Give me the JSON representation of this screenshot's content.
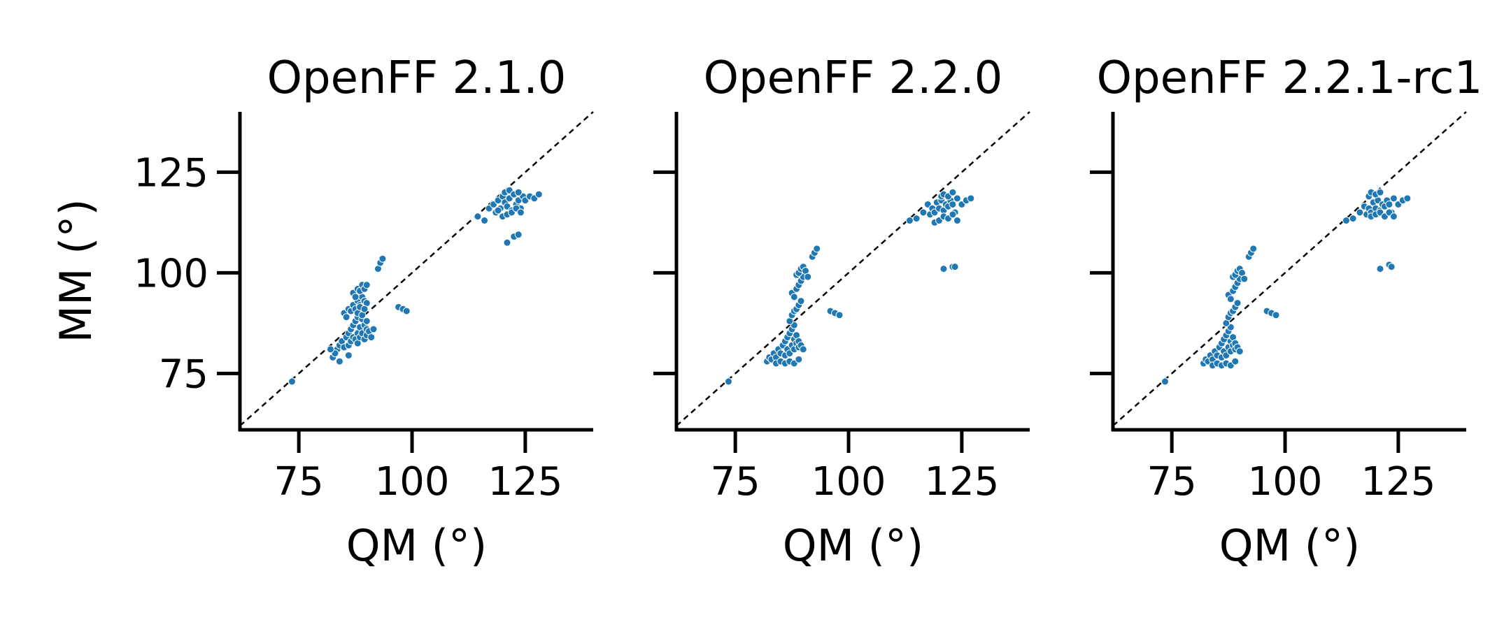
{
  "chart_data": [
    {
      "type": "scatter",
      "title": "OpenFF 2.1.0",
      "xlabel": "QM (°)",
      "ylabel": "MM (°)",
      "xlim": [
        62,
        140
      ],
      "ylim": [
        61,
        140
      ],
      "xticks": [
        75,
        100,
        125
      ],
      "yticks": [
        75,
        100,
        125
      ],
      "grid": false,
      "reference_line": "y = x (dashed)",
      "point_color": "#1f77b4",
      "series": [
        {
          "x": [
            73.5,
            82.5,
            83.0,
            83.5,
            84.0,
            84.5,
            85.0,
            85.5,
            86.0,
            86.0,
            86.5,
            86.5,
            87.0,
            87.0,
            87.5,
            87.5,
            88.0,
            88.0,
            88.0,
            88.5,
            88.5,
            89.0,
            89.0,
            89.5,
            89.5,
            90.0,
            90.0,
            90.5,
            91.0,
            91.5,
            85.0,
            85.5,
            86.0,
            86.5,
            87.0,
            87.5,
            88.0,
            88.5,
            89.0,
            89.5,
            90.0,
            87.0,
            87.5,
            88.0,
            88.5,
            89.0,
            89.5,
            90.0,
            88.0,
            88.5,
            89.0,
            89.5,
            90.0,
            86.0,
            84.0,
            83.0,
            82.0,
            92.5,
            93.0,
            93.5,
            97.0,
            98.0,
            98.8,
            114.5,
            116.0,
            117.0,
            118.0,
            118.5,
            119.0,
            119.5,
            120.0,
            120.5,
            121.0,
            121.5,
            122.0,
            122.5,
            123.0,
            123.5,
            124.0,
            124.5,
            125.0,
            126.0,
            127.0,
            128.0,
            119.0,
            120.0,
            121.0,
            122.0,
            123.0,
            124.0,
            120.5,
            121.5,
            122.5,
            123.5,
            121.0,
            122.5,
            123.5
          ],
          "y": [
            73.0,
            79.0,
            80.0,
            81.0,
            82.0,
            83.0,
            81.5,
            84.0,
            82.0,
            85.0,
            83.0,
            86.0,
            84.0,
            87.0,
            83.5,
            88.0,
            82.5,
            85.0,
            89.0,
            84.0,
            86.5,
            85.0,
            88.5,
            83.5,
            87.0,
            84.5,
            86.0,
            85.5,
            84.0,
            86.0,
            90.0,
            89.0,
            91.0,
            90.5,
            92.0,
            91.0,
            93.0,
            92.0,
            94.0,
            93.0,
            92.5,
            95.0,
            94.0,
            96.0,
            95.5,
            97.0,
            96.0,
            97.0,
            90.0,
            91.5,
            89.5,
            91.0,
            88.0,
            79.5,
            78.0,
            80.0,
            81.0,
            101.0,
            102.5,
            103.5,
            91.5,
            91.0,
            90.5,
            114.0,
            113.0,
            116.0,
            117.0,
            115.0,
            118.0,
            116.0,
            119.0,
            117.5,
            116.5,
            118.5,
            115.5,
            119.5,
            117.0,
            118.0,
            116.0,
            119.0,
            118.0,
            119.0,
            118.5,
            119.5,
            115.5,
            114.0,
            114.5,
            115.0,
            116.0,
            115.0,
            120.0,
            120.5,
            119.5,
            120.0,
            107.5,
            109.0,
            109.5
          ]
        }
      ]
    },
    {
      "type": "scatter",
      "title": "OpenFF 2.2.0",
      "xlabel": "QM (°)",
      "ylabel": "",
      "xlim": [
        62,
        140
      ],
      "ylim": [
        61,
        140
      ],
      "xticks": [
        75,
        100,
        125
      ],
      "yticks": [
        75,
        100,
        125
      ],
      "grid": false,
      "reference_line": "y = x (dashed)",
      "point_color": "#1f77b4",
      "series": [
        {
          "x": [
            73.5,
            82.0,
            82.5,
            83.0,
            83.5,
            84.0,
            84.5,
            85.0,
            85.5,
            86.0,
            86.0,
            86.5,
            86.5,
            87.0,
            87.0,
            87.5,
            87.5,
            88.0,
            88.0,
            88.0,
            88.5,
            88.5,
            89.0,
            89.0,
            89.5,
            90.0,
            84.0,
            85.0,
            86.0,
            87.0,
            88.0,
            89.0,
            87.0,
            87.5,
            88.0,
            88.5,
            89.0,
            89.5,
            87.5,
            88.0,
            88.5,
            89.0,
            89.5,
            90.0,
            88.5,
            89.0,
            89.5,
            90.0,
            90.5,
            91.0,
            92.0,
            92.5,
            93.0,
            96.0,
            97.0,
            98.0,
            113.5,
            115.0,
            116.5,
            117.5,
            118.0,
            118.5,
            119.0,
            119.5,
            120.0,
            120.5,
            121.0,
            121.5,
            122.0,
            122.5,
            123.0,
            123.5,
            124.0,
            125.0,
            126.0,
            127.0,
            119.0,
            120.0,
            121.0,
            122.0,
            123.0,
            124.0,
            120.5,
            121.0,
            122.0,
            123.0,
            121.0,
            123.0,
            123.5
          ],
          "y": [
            73.0,
            78.0,
            79.0,
            78.5,
            80.0,
            79.0,
            81.0,
            80.0,
            82.0,
            79.5,
            83.0,
            81.0,
            84.0,
            80.0,
            85.0,
            82.0,
            86.0,
            81.0,
            83.5,
            87.0,
            82.5,
            84.5,
            81.5,
            83.0,
            82.0,
            81.0,
            77.5,
            78.0,
            77.5,
            78.0,
            77.5,
            78.5,
            88.0,
            89.5,
            90.5,
            91.0,
            92.0,
            93.0,
            95.0,
            94.0,
            96.0,
            97.0,
            98.0,
            99.0,
            99.5,
            100.0,
            101.0,
            101.5,
            100.5,
            99.0,
            104.0,
            105.0,
            106.0,
            90.5,
            90.0,
            89.5,
            113.0,
            113.5,
            115.0,
            117.0,
            114.5,
            116.0,
            115.0,
            117.5,
            116.0,
            118.0,
            115.5,
            117.0,
            116.5,
            118.0,
            117.0,
            115.0,
            118.5,
            117.0,
            118.0,
            118.5,
            112.5,
            113.0,
            114.0,
            113.5,
            114.5,
            113.0,
            119.0,
            119.5,
            119.0,
            120.0,
            101.0,
            101.5,
            101.5
          ]
        }
      ]
    },
    {
      "type": "scatter",
      "title": "OpenFF 2.2.1-rc1",
      "xlabel": "QM (°)",
      "ylabel": "",
      "xlim": [
        62,
        140
      ],
      "ylim": [
        61,
        140
      ],
      "xticks": [
        75,
        100,
        125
      ],
      "yticks": [
        75,
        100,
        125
      ],
      "grid": false,
      "reference_line": "y = x (dashed)",
      "point_color": "#1f77b4",
      "series": [
        {
          "x": [
            73.5,
            82.0,
            82.5,
            83.0,
            83.5,
            84.0,
            84.5,
            85.0,
            85.5,
            86.0,
            86.0,
            86.5,
            86.5,
            87.0,
            87.0,
            87.5,
            87.5,
            88.0,
            88.0,
            88.0,
            88.5,
            88.5,
            89.0,
            89.0,
            89.5,
            90.0,
            84.0,
            85.0,
            86.0,
            87.0,
            88.0,
            89.0,
            87.0,
            87.5,
            88.0,
            88.5,
            89.0,
            89.5,
            87.5,
            88.0,
            88.5,
            89.0,
            89.5,
            90.0,
            88.5,
            89.0,
            89.5,
            90.0,
            90.5,
            91.0,
            92.0,
            92.5,
            93.0,
            96.0,
            97.0,
            98.0,
            113.5,
            115.0,
            116.5,
            117.5,
            118.0,
            118.5,
            119.0,
            119.5,
            120.0,
            120.5,
            121.0,
            121.5,
            122.0,
            122.5,
            123.0,
            123.5,
            124.0,
            125.0,
            126.0,
            127.0,
            119.0,
            120.0,
            121.0,
            122.0,
            123.0,
            124.0,
            118.5,
            119.0,
            120.0,
            121.0,
            121.0,
            123.0,
            123.5
          ],
          "y": [
            73.0,
            77.5,
            78.5,
            78.0,
            79.5,
            78.5,
            80.5,
            79.5,
            81.5,
            79.0,
            82.5,
            80.5,
            83.5,
            79.5,
            84.5,
            81.5,
            85.5,
            80.5,
            83.0,
            86.5,
            82.0,
            84.0,
            81.0,
            82.5,
            81.5,
            80.5,
            77.0,
            77.5,
            77.0,
            77.5,
            77.0,
            78.0,
            87.5,
            89.0,
            90.0,
            90.5,
            91.5,
            92.5,
            94.5,
            93.5,
            95.5,
            96.5,
            97.5,
            98.5,
            99.0,
            99.5,
            100.5,
            101.0,
            100.0,
            98.5,
            104.0,
            105.0,
            106.0,
            90.5,
            90.0,
            89.5,
            113.0,
            113.5,
            115.0,
            116.5,
            114.5,
            116.0,
            115.0,
            117.5,
            116.0,
            118.0,
            115.5,
            117.0,
            116.5,
            118.0,
            117.0,
            115.0,
            118.5,
            117.0,
            118.0,
            118.5,
            114.0,
            114.5,
            115.0,
            114.0,
            115.0,
            114.0,
            119.0,
            120.0,
            119.5,
            120.0,
            101.0,
            102.0,
            101.5
          ]
        }
      ]
    }
  ]
}
